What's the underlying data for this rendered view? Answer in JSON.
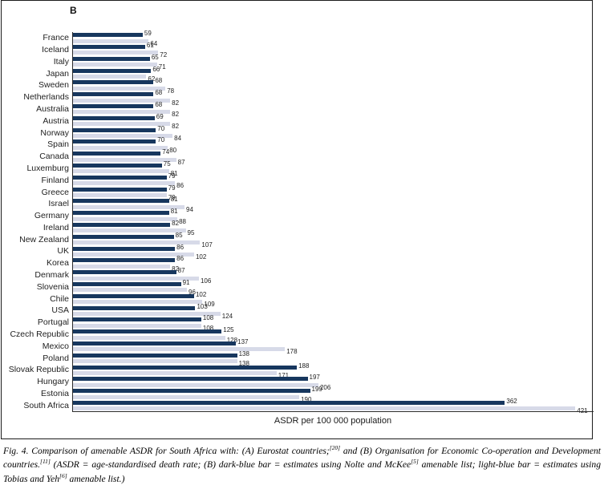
{
  "chart_data": {
    "type": "bar",
    "orientation": "horizontal",
    "panel_label": "B",
    "title": "",
    "xlabel": "ASDR per 100 000 population",
    "ylabel": "",
    "xlim": [
      0,
      437
    ],
    "grid": false,
    "legend_position": "none",
    "series": [
      {
        "name": "Nolte and McKee amenable list",
        "legend_hint": "dark-blue bar",
        "color": "#17375e"
      },
      {
        "name": "Tobias and Yeh amenable list",
        "legend_hint": "light-blue bar",
        "color": "#d7dae8"
      }
    ],
    "categories": [
      "France",
      "Iceland",
      "Italy",
      "Japan",
      "Sweden",
      "Netherlands",
      "Australia",
      "Austria",
      "Norway",
      "Spain",
      "Canada",
      "Luxemburg",
      "Finland",
      "Greece",
      "Israel",
      "Germany",
      "Ireland",
      "New Zealand",
      "UK",
      "Korea",
      "Denmark",
      "Slovenia",
      "Chile",
      "USA",
      "Portugal",
      "Czech Republic",
      "Mexico",
      "Poland",
      "Slovak Republic",
      "Hungary",
      "Estonia",
      "South Africa"
    ],
    "values_dark": [
      59,
      61,
      65,
      66,
      68,
      68,
      68,
      69,
      70,
      70,
      74,
      75,
      79,
      79,
      81,
      81,
      82,
      85,
      86,
      86,
      87,
      91,
      102,
      103,
      108,
      125,
      137,
      138,
      188,
      197,
      199,
      362
    ],
    "values_light": [
      64,
      72,
      71,
      62,
      78,
      82,
      82,
      82,
      84,
      80,
      87,
      81,
      86,
      79,
      94,
      88,
      95,
      107,
      102,
      82,
      106,
      96,
      109,
      124,
      108,
      128,
      178,
      138,
      171,
      206,
      190,
      421
    ],
    "colors": {
      "dark_bar": "#17375e",
      "light_bar": "#d7dae8",
      "axis": "#2b2b2b",
      "figure_border": "#1c1c1c",
      "label_text": "#222222"
    }
  },
  "caption": {
    "part1": "Fig. 4. Comparison of amenable ASDR for South Africa with: (A) Eurostat countries;",
    "ref1": "[20]",
    "part2": " and (B) Organisation for Economic Co-operation and Development countries.",
    "ref2": "[11]",
    "part3": " (ASDR = age-standardised death rate; (B) dark-blue bar = estimates using Nolte and McKee",
    "ref3": "[5]",
    "part4": " amenable list; light-blue bar = estimates using Tobias and Yeh",
    "ref4": "[6]",
    "part5": " amenable list.)"
  }
}
